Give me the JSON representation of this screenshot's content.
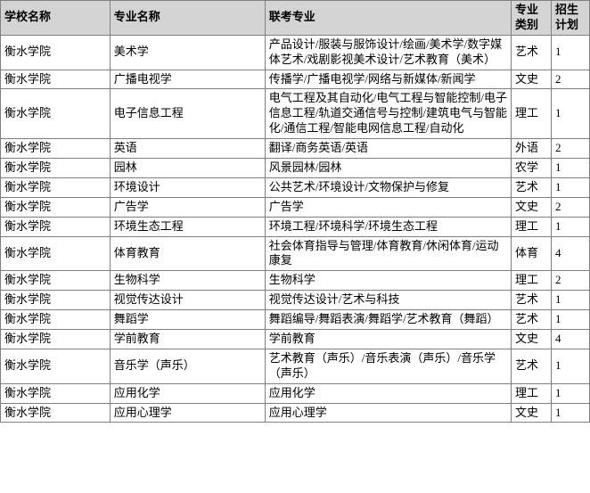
{
  "table": {
    "columns": [
      "学校名称",
      "专业名称",
      "联考专业",
      "专业类别",
      "招生计划"
    ],
    "rows": [
      [
        "衡水学院",
        "美术学",
        "产品设计/服装与服饰设计/绘画/美术学/数字媒体艺术/戏剧影视美术设计/艺术教育（美术）",
        "艺术",
        "1"
      ],
      [
        "衡水学院",
        "广播电视学",
        "传播学/广播电视学/网络与新媒体/新闻学",
        "文史",
        "2"
      ],
      [
        "衡水学院",
        "电子信息工程",
        "电气工程及其自动化/电气工程与智能控制/电子信息工程/轨道交通信号与控制/建筑电气与智能化/通信工程/智能电网信息工程/自动化",
        "理工",
        "1"
      ],
      [
        "衡水学院",
        "英语",
        "翻译/商务英语/英语",
        "外语",
        "2"
      ],
      [
        "衡水学院",
        "园林",
        "风景园林/园林",
        "农学",
        "1"
      ],
      [
        "衡水学院",
        "环境设计",
        "公共艺术/环境设计/文物保护与修复",
        "艺术",
        "1"
      ],
      [
        "衡水学院",
        "广告学",
        "广告学",
        "文史",
        "2"
      ],
      [
        "衡水学院",
        "环境生态工程",
        "环境工程/环境科学/环境生态工程",
        "理工",
        "1"
      ],
      [
        "衡水学院",
        "体育教育",
        "社会体育指导与管理/体育教育/休闲体育/运动康复",
        "体育",
        "4"
      ],
      [
        "衡水学院",
        "生物科学",
        "生物科学",
        "理工",
        "2"
      ],
      [
        "衡水学院",
        "视觉传达设计",
        "视觉传达设计/艺术与科技",
        "艺术",
        "1"
      ],
      [
        "衡水学院",
        "舞蹈学",
        "舞蹈编导/舞蹈表演/舞蹈学/艺术教育（舞蹈）",
        "艺术",
        "1"
      ],
      [
        "衡水学院",
        "学前教育",
        "学前教育",
        "文史",
        "4"
      ],
      [
        "衡水学院",
        "音乐学（声乐）",
        "艺术教育（声乐）/音乐表演（声乐）/音乐学（声乐）",
        "艺术",
        "1"
      ],
      [
        "衡水学院",
        "应用化学",
        "应用化学",
        "理工",
        "1"
      ],
      [
        "衡水学院",
        "应用心理学",
        "应用心理学",
        "文史",
        "1"
      ]
    ]
  }
}
